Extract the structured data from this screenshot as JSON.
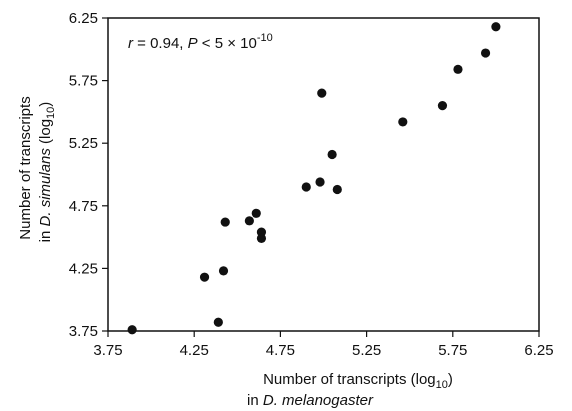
{
  "chart_data": {
    "type": "scatter",
    "annotation": {
      "r_part": "r",
      "r_eq": " = 0.94, ",
      "p_part": "P",
      "p_eq": " < 5 × 10",
      "p_exp": "-10"
    },
    "xlabel": {
      "line1": "Number of transcripts (log",
      "line1_sub": "10",
      "line1_end": ")",
      "line2_prefix": "in ",
      "line2_species": "D. melanogaster"
    },
    "ylabel": {
      "line1": "Number of transcripts",
      "line2_prefix": "in ",
      "line2_species": "D. simulans",
      "line2_mid": " (log",
      "line2_sub": "10",
      "line2_end": ")"
    },
    "xlim": [
      3.75,
      6.25
    ],
    "ylim": [
      3.75,
      6.25
    ],
    "xticks": [
      "3.75",
      "4.25",
      "4.75",
      "5.25",
      "5.75",
      "6.25"
    ],
    "yticks": [
      "3.75",
      "4.25",
      "4.75",
      "5.25",
      "5.75",
      "6.25"
    ],
    "grid": false,
    "marker_color": "#111111",
    "points": [
      {
        "x": 3.89,
        "y": 3.76
      },
      {
        "x": 4.31,
        "y": 4.18
      },
      {
        "x": 4.39,
        "y": 3.82
      },
      {
        "x": 4.42,
        "y": 4.23
      },
      {
        "x": 4.43,
        "y": 4.62
      },
      {
        "x": 4.57,
        "y": 4.63
      },
      {
        "x": 4.61,
        "y": 4.69
      },
      {
        "x": 4.64,
        "y": 4.54
      },
      {
        "x": 4.64,
        "y": 4.49
      },
      {
        "x": 4.9,
        "y": 4.9
      },
      {
        "x": 4.98,
        "y": 4.94
      },
      {
        "x": 4.99,
        "y": 5.65
      },
      {
        "x": 5.05,
        "y": 5.16
      },
      {
        "x": 5.08,
        "y": 4.88
      },
      {
        "x": 5.46,
        "y": 5.42
      },
      {
        "x": 5.69,
        "y": 5.55
      },
      {
        "x": 5.78,
        "y": 5.84
      },
      {
        "x": 5.94,
        "y": 5.97
      },
      {
        "x": 6.0,
        "y": 6.18
      }
    ]
  }
}
